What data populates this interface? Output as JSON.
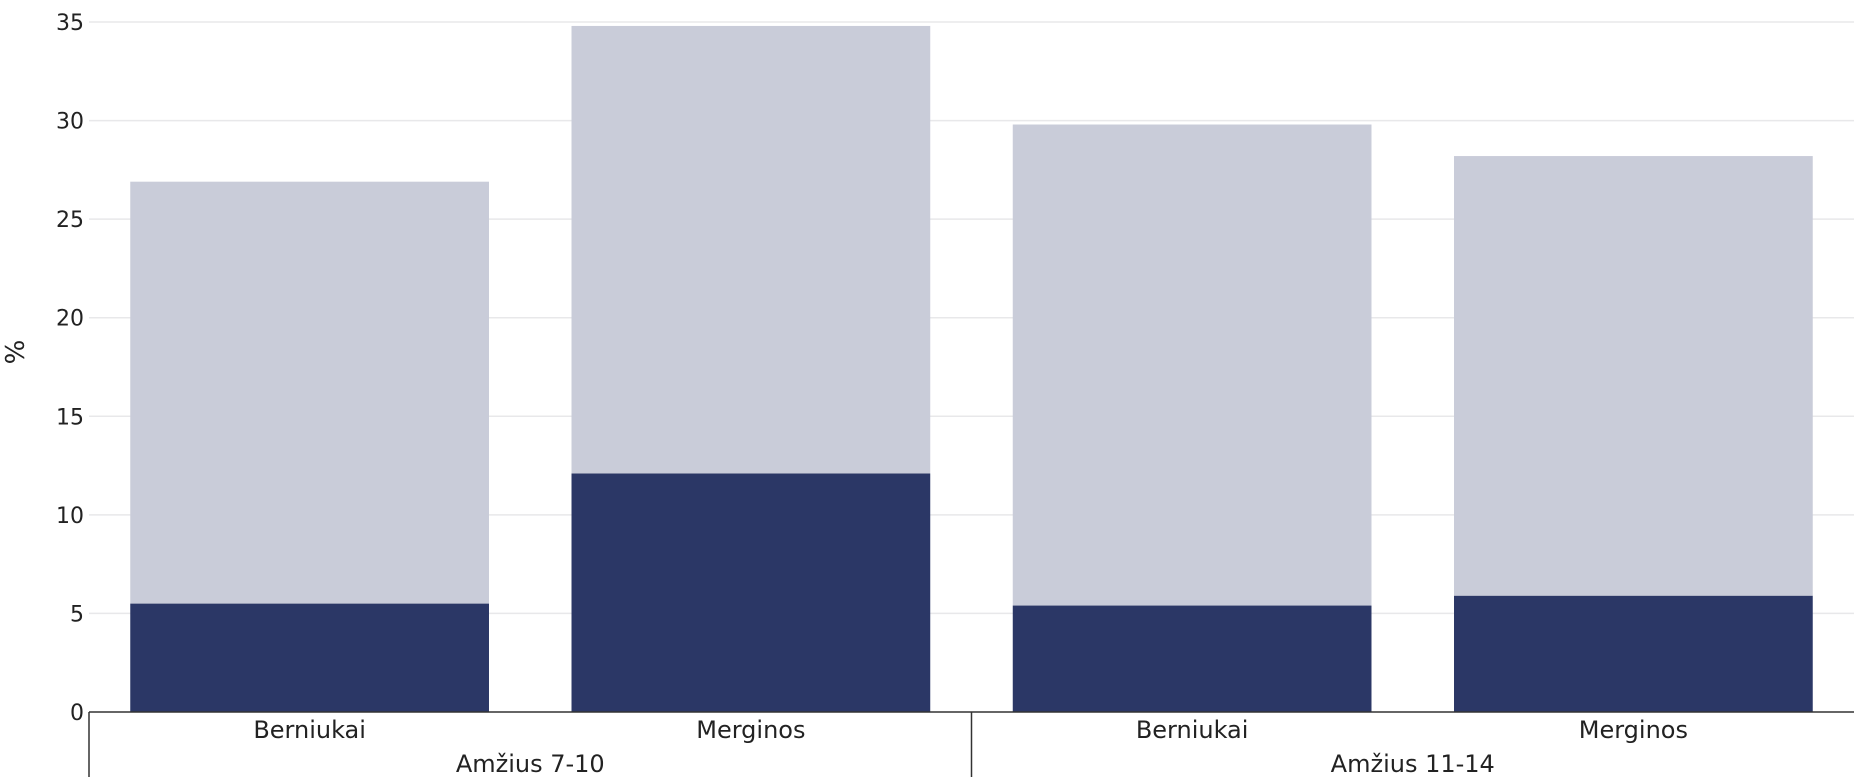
{
  "chart_data": {
    "type": "bar",
    "stacked": true,
    "ylabel": "%",
    "ylim": [
      0,
      35
    ],
    "yticks": [
      0,
      5,
      10,
      15,
      20,
      25,
      30,
      35
    ],
    "grid": true,
    "groups": [
      {
        "label": "Amžius 7-10",
        "categories": [
          "Berniukai",
          "Merginos"
        ]
      },
      {
        "label": "Amžius 11-14",
        "categories": [
          "Berniukai",
          "Merginos"
        ]
      }
    ],
    "categories": [
      "Berniukai",
      "Merginos",
      "Berniukai",
      "Merginos"
    ],
    "series": [
      {
        "values": [
          5.5,
          12.1,
          5.4,
          5.9
        ],
        "color": "#2b3766"
      },
      {
        "values": [
          21.4,
          22.7,
          24.4,
          22.3
        ],
        "color": "#c9ccd9"
      }
    ]
  }
}
